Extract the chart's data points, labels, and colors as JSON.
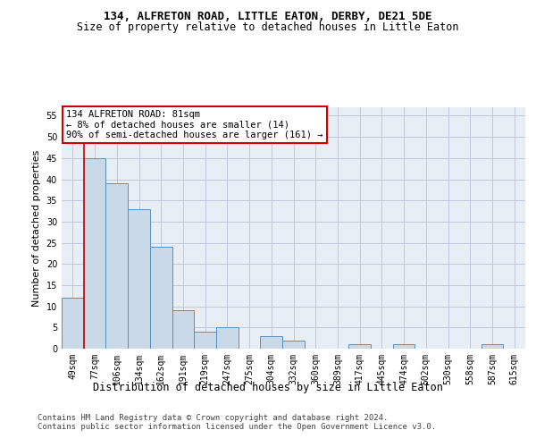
{
  "title": "134, ALFRETON ROAD, LITTLE EATON, DERBY, DE21 5DE",
  "subtitle": "Size of property relative to detached houses in Little Eaton",
  "xlabel": "Distribution of detached houses by size in Little Eaton",
  "ylabel": "Number of detached properties",
  "categories": [
    "49sqm",
    "77sqm",
    "106sqm",
    "134sqm",
    "162sqm",
    "191sqm",
    "219sqm",
    "247sqm",
    "275sqm",
    "304sqm",
    "332sqm",
    "360sqm",
    "389sqm",
    "417sqm",
    "445sqm",
    "474sqm",
    "502sqm",
    "530sqm",
    "558sqm",
    "587sqm",
    "615sqm"
  ],
  "values": [
    12,
    45,
    39,
    33,
    24,
    9,
    4,
    5,
    0,
    3,
    2,
    0,
    0,
    1,
    0,
    1,
    0,
    0,
    0,
    1,
    0
  ],
  "bar_color": "#c9d9e8",
  "bar_edge_color": "#5a8fc0",
  "vline_color": "#cc0000",
  "vline_x_index": 1,
  "annotation_text": "134 ALFRETON ROAD: 81sqm\n← 8% of detached houses are smaller (14)\n90% of semi-detached houses are larger (161) →",
  "annotation_box_color": "#ffffff",
  "annotation_box_edge": "#cc0000",
  "ylim": [
    0,
    57
  ],
  "yticks": [
    0,
    5,
    10,
    15,
    20,
    25,
    30,
    35,
    40,
    45,
    50,
    55
  ],
  "grid_color": "#c0c8d8",
  "bg_color": "#e8eef5",
  "footer": "Contains HM Land Registry data © Crown copyright and database right 2024.\nContains public sector information licensed under the Open Government Licence v3.0.",
  "title_fontsize": 9,
  "subtitle_fontsize": 8.5,
  "xlabel_fontsize": 8.5,
  "ylabel_fontsize": 8,
  "tick_fontsize": 7,
  "annotation_fontsize": 7.5,
  "footer_fontsize": 6.5
}
